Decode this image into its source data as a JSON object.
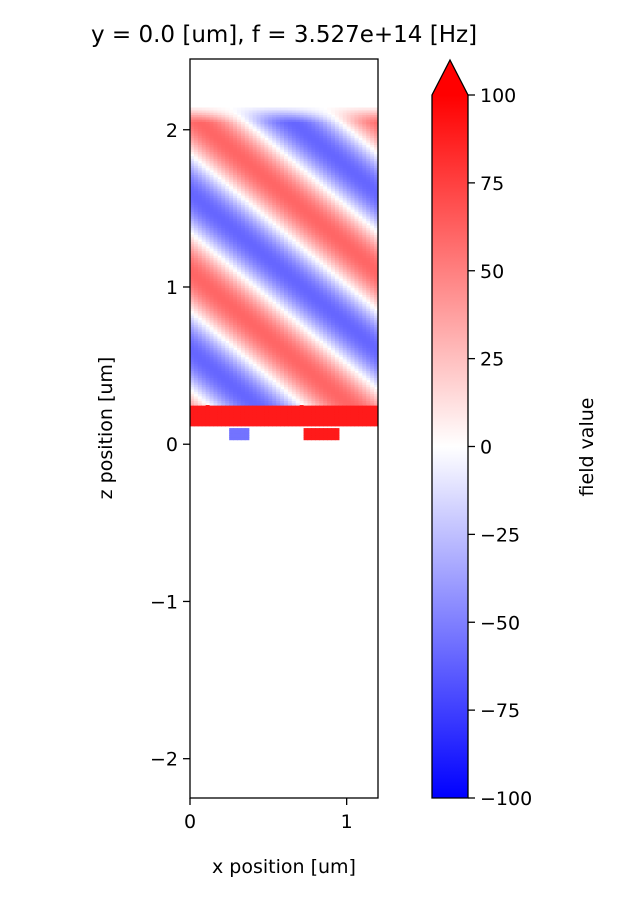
{
  "chart_data": {
    "type": "heatmap",
    "title": "y = 0.0 [um], f = 3.527e+14 [Hz]",
    "xlabel": "x position [um]",
    "ylabel": "z position [um]",
    "xlim": [
      0,
      1.2
    ],
    "ylim": [
      -2.25,
      2.45
    ],
    "xticks": [
      0,
      1
    ],
    "xtick_labels": [
      "0",
      "1"
    ],
    "yticks": [
      -2,
      -1,
      0,
      1,
      2
    ],
    "ytick_labels": [
      "−2",
      "−1",
      "0",
      "1",
      "2"
    ],
    "field": {
      "wave_region_z": [
        0.25,
        2.15
      ],
      "wave_amplitude_peak": 60,
      "wave_period_x_um": 1.2,
      "wave_period_z_um": 1.0,
      "band_z": [
        0.12,
        0.25
      ],
      "band_value": 90,
      "layer_z": [
        0.03,
        0.1
      ],
      "layer_blobs": [
        {
          "x": [
            0.25,
            0.38
          ],
          "value": -55
        },
        {
          "x": [
            0.72,
            0.95
          ],
          "value": 90
        }
      ]
    },
    "colorbar": {
      "label": "field value",
      "vmin": -100,
      "vmax": 100,
      "ticks": [
        100,
        75,
        50,
        25,
        0,
        -25,
        -50,
        -75,
        -100
      ],
      "tick_labels": [
        "100",
        "75",
        "50",
        "25",
        "0",
        "−25",
        "−50",
        "−75",
        "−100"
      ],
      "extend": "max",
      "colormap": [
        "#0000ff",
        "#ffffff",
        "#ff0000"
      ]
    }
  }
}
